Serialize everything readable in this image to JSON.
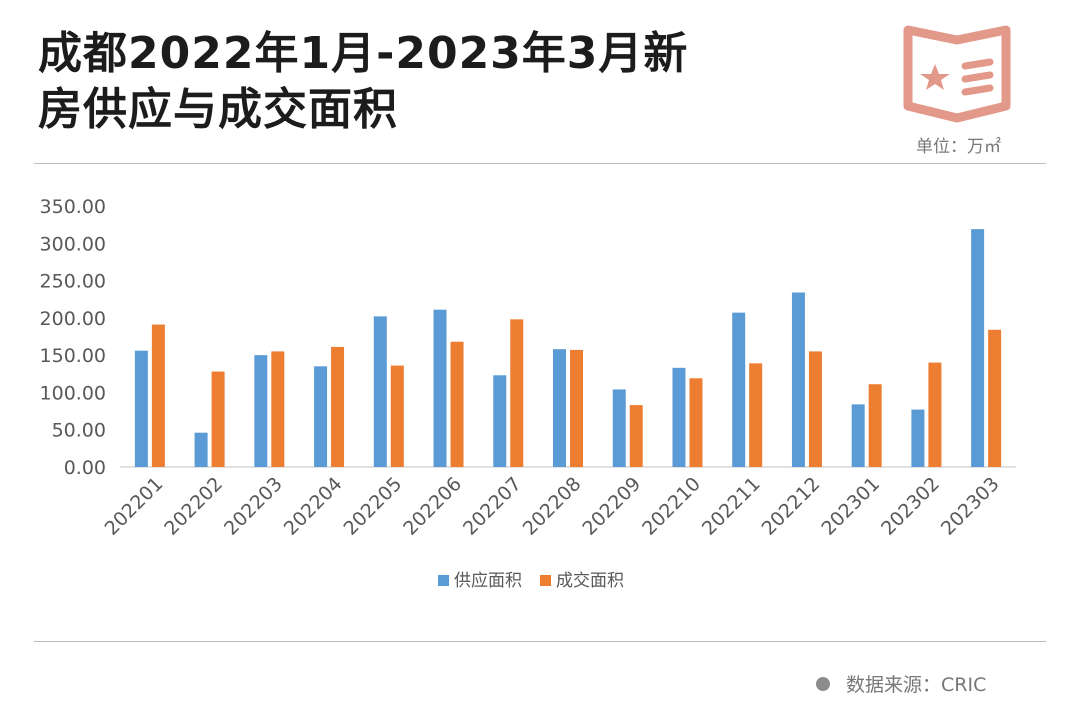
{
  "header": {
    "title_line1": "成都2022年1月-2023年3月新",
    "title_line2": "房供应与成交面积",
    "unit": "单位：万㎡"
  },
  "footer": {
    "source": "数据来源：CRIC"
  },
  "colors": {
    "supply": "#5b9bd5",
    "deal": "#ed7d31",
    "badge": "#e3998a",
    "axis": "#d9d9d9",
    "tick_text": "#595959"
  },
  "icons": {
    "badge": "star-book-icon",
    "source_dot": "dot-icon"
  },
  "chart_data": {
    "type": "bar",
    "title": "",
    "xlabel": "",
    "ylabel": "",
    "categories": [
      "202201",
      "202202",
      "202203",
      "202204",
      "202205",
      "202206",
      "202207",
      "202208",
      "202209",
      "202210",
      "202211",
      "202212",
      "202301",
      "202302",
      "202303"
    ],
    "series": [
      {
        "name": "供应面积",
        "color": "#5b9bd5",
        "values": [
          156,
          46,
          150,
          135,
          202,
          211,
          123,
          158,
          104,
          133,
          207,
          234,
          84,
          77,
          319
        ]
      },
      {
        "name": "成交面积",
        "color": "#ed7d31",
        "values": [
          191,
          128,
          155,
          161,
          136,
          168,
          198,
          157,
          83,
          119,
          139,
          155,
          111,
          140,
          184
        ]
      }
    ],
    "ylim": [
      0,
      350
    ],
    "yticks": [
      "0.00",
      "50.00",
      "100.00",
      "150.00",
      "200.00",
      "250.00",
      "300.00",
      "350.00"
    ],
    "grid": false,
    "legend_position": "bottom"
  }
}
